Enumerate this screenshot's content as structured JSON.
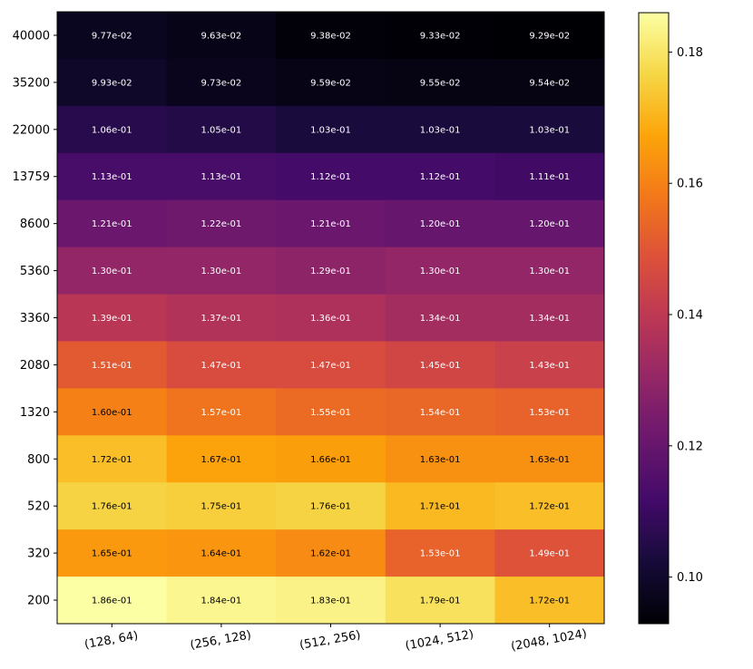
{
  "chart_data": {
    "type": "heatmap",
    "title": "",
    "xlabel": "",
    "ylabel": "",
    "colormap": "inferno",
    "x_categories": [
      "(128, 64)",
      "(256, 128)",
      "(512, 256)",
      "(1024, 512)",
      "(2048, 1024)"
    ],
    "y_categories": [
      "40000",
      "35200",
      "22000",
      "13759",
      "8600",
      "5360",
      "3360",
      "2080",
      "1320",
      "800",
      "520",
      "320",
      "200"
    ],
    "values": [
      [
        0.0977,
        0.0963,
        0.0938,
        0.0933,
        0.0929
      ],
      [
        0.0993,
        0.0973,
        0.0959,
        0.0955,
        0.0954
      ],
      [
        0.106,
        0.105,
        0.103,
        0.103,
        0.103
      ],
      [
        0.113,
        0.113,
        0.112,
        0.112,
        0.111
      ],
      [
        0.121,
        0.122,
        0.121,
        0.12,
        0.12
      ],
      [
        0.13,
        0.13,
        0.129,
        0.13,
        0.13
      ],
      [
        0.139,
        0.137,
        0.136,
        0.134,
        0.134
      ],
      [
        0.151,
        0.147,
        0.147,
        0.145,
        0.143
      ],
      [
        0.16,
        0.157,
        0.155,
        0.154,
        0.153
      ],
      [
        0.172,
        0.167,
        0.166,
        0.163,
        0.163
      ],
      [
        0.176,
        0.175,
        0.176,
        0.171,
        0.172
      ],
      [
        0.165,
        0.164,
        0.162,
        0.153,
        0.149
      ],
      [
        0.186,
        0.184,
        0.183,
        0.179,
        0.172
      ]
    ],
    "labels": [
      [
        "9.77e-02",
        "9.63e-02",
        "9.38e-02",
        "9.33e-02",
        "9.29e-02"
      ],
      [
        "9.93e-02",
        "9.73e-02",
        "9.59e-02",
        "9.55e-02",
        "9.54e-02"
      ],
      [
        "1.06e-01",
        "1.05e-01",
        "1.03e-01",
        "1.03e-01",
        "1.03e-01"
      ],
      [
        "1.13e-01",
        "1.13e-01",
        "1.12e-01",
        "1.12e-01",
        "1.11e-01"
      ],
      [
        "1.21e-01",
        "1.22e-01",
        "1.21e-01",
        "1.20e-01",
        "1.20e-01"
      ],
      [
        "1.30e-01",
        "1.30e-01",
        "1.29e-01",
        "1.30e-01",
        "1.30e-01"
      ],
      [
        "1.39e-01",
        "1.37e-01",
        "1.36e-01",
        "1.34e-01",
        "1.34e-01"
      ],
      [
        "1.51e-01",
        "1.47e-01",
        "1.47e-01",
        "1.45e-01",
        "1.43e-01"
      ],
      [
        "1.60e-01",
        "1.57e-01",
        "1.55e-01",
        "1.54e-01",
        "1.53e-01"
      ],
      [
        "1.72e-01",
        "1.67e-01",
        "1.66e-01",
        "1.63e-01",
        "1.63e-01"
      ],
      [
        "1.76e-01",
        "1.75e-01",
        "1.76e-01",
        "1.71e-01",
        "1.72e-01"
      ],
      [
        "1.65e-01",
        "1.64e-01",
        "1.62e-01",
        "1.53e-01",
        "1.49e-01"
      ],
      [
        "1.86e-01",
        "1.84e-01",
        "1.83e-01",
        "1.79e-01",
        "1.72e-01"
      ]
    ],
    "colorbar": {
      "range": [
        0.0929,
        0.186
      ],
      "ticks": [
        0.1,
        0.12,
        0.14,
        0.16,
        0.18
      ],
      "tick_labels": [
        "0.10",
        "0.12",
        "0.14",
        "0.16",
        "0.18"
      ]
    },
    "x_tick_rotation": 10
  }
}
